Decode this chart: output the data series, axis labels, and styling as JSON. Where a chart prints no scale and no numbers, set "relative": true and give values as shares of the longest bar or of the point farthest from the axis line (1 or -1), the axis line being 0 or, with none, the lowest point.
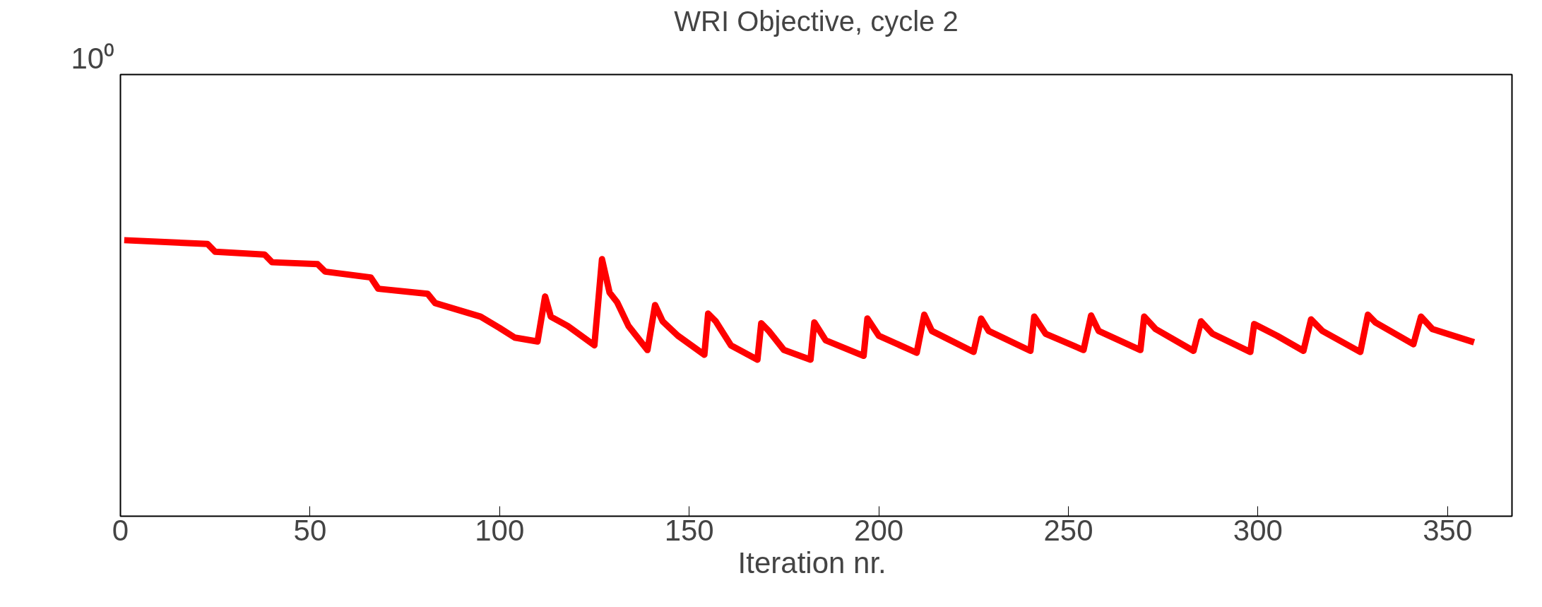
{
  "chart_data": {
    "type": "line",
    "title": "WRI Objective, cycle 2",
    "xlabel": "Iteration  nr.",
    "relative": true,
    "annotations": [
      "10⁰"
    ],
    "xlim": [
      0,
      367
    ],
    "xticks": [
      0,
      50,
      100,
      150,
      200,
      250,
      300,
      350
    ],
    "grid": false,
    "marker": "none",
    "line_style": "solid",
    "series": [
      {
        "color": "#ff0000",
        "x": [
          1,
          23,
          25,
          38,
          40,
          52,
          54,
          66,
          68,
          81,
          83,
          95,
          100,
          104,
          110,
          112,
          113.5,
          118,
          125,
          127,
          129,
          131,
          134,
          139,
          141,
          143,
          147,
          154,
          155,
          157,
          161,
          168,
          169,
          171,
          175,
          182,
          183,
          186,
          196,
          197,
          200,
          210,
          212,
          214,
          225,
          227,
          229,
          240,
          241,
          244,
          254,
          256,
          258,
          269,
          270,
          273,
          283,
          285,
          288,
          298,
          299,
          305,
          312,
          314,
          317,
          327,
          329,
          331,
          341,
          343,
          346,
          357
        ],
        "values": [
          1.0,
          0.986,
          0.958,
          0.948,
          0.92,
          0.913,
          0.886,
          0.865,
          0.824,
          0.806,
          0.772,
          0.723,
          0.682,
          0.647,
          0.633,
          0.796,
          0.723,
          0.689,
          0.619,
          0.931,
          0.81,
          0.775,
          0.689,
          0.602,
          0.765,
          0.706,
          0.654,
          0.585,
          0.734,
          0.706,
          0.619,
          0.567,
          0.699,
          0.671,
          0.602,
          0.567,
          0.702,
          0.637,
          0.581,
          0.716,
          0.654,
          0.592,
          0.73,
          0.671,
          0.595,
          0.716,
          0.671,
          0.599,
          0.723,
          0.661,
          0.602,
          0.727,
          0.671,
          0.602,
          0.723,
          0.678,
          0.599,
          0.706,
          0.661,
          0.595,
          0.696,
          0.654,
          0.599,
          0.713,
          0.671,
          0.595,
          0.73,
          0.702,
          0.623,
          0.723,
          0.678,
          0.63
        ]
      }
    ]
  }
}
